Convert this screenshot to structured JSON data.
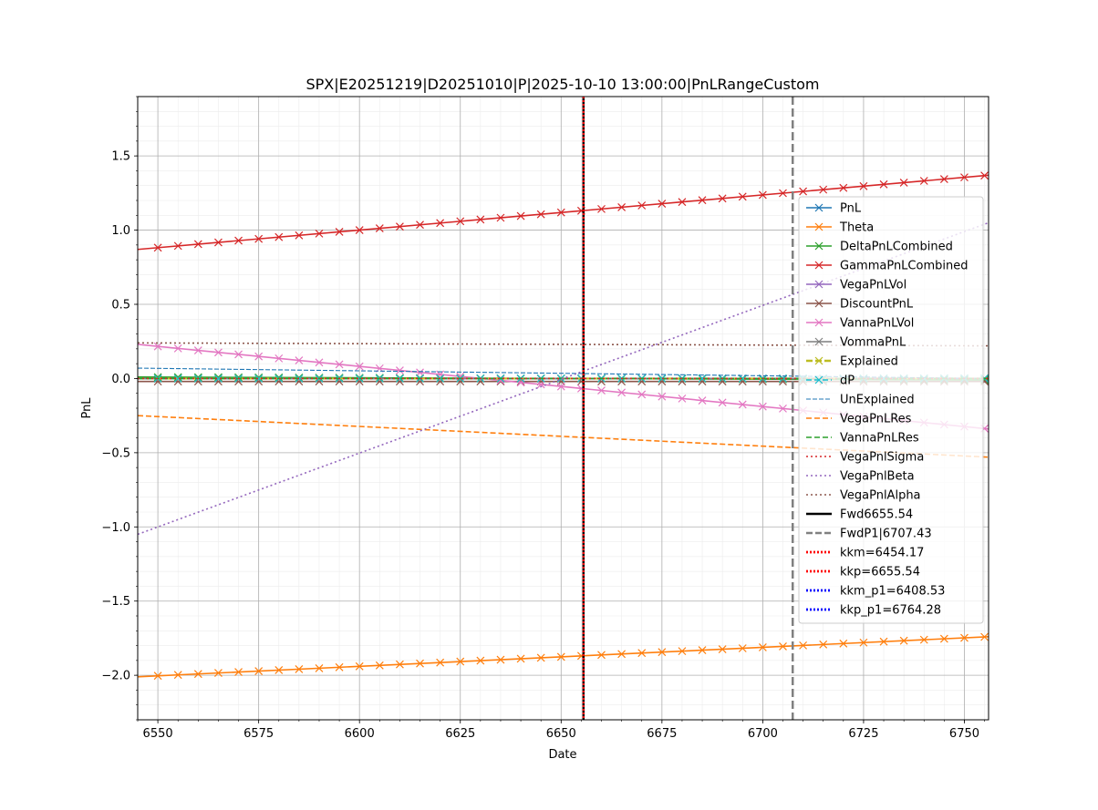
{
  "chart_data": {
    "type": "line",
    "title": "SPX|E20251219|D20251010|P|2025-10-10 13:00:00|PnLRangeCustom",
    "xlabel": "Date",
    "ylabel": "PnL",
    "xlim": [
      6545.0,
      6756.0
    ],
    "ylim": [
      -2.3,
      1.9
    ],
    "xticks": [
      6550,
      6575,
      6600,
      6625,
      6650,
      6675,
      6700,
      6725,
      6750
    ],
    "yticks": [
      -2.0,
      -1.5,
      -1.0,
      -0.5,
      0.0,
      0.5,
      1.0,
      1.5
    ],
    "xtick_labels": [
      "6550",
      "6575",
      "6600",
      "6625",
      "6650",
      "6675",
      "6700",
      "6725",
      "6750"
    ],
    "ytick_labels": [
      "−2.0",
      "−1.5",
      "−1.0",
      "−0.5",
      "0.0",
      "0.5",
      "1.0",
      "1.5"
    ],
    "grid": true,
    "minor_grid": true,
    "legend_position": "right",
    "x_start": 6545,
    "x_end": 6756,
    "marker_step": 5,
    "series": [
      {
        "name": "PnL",
        "color": "#1f77b4",
        "style": "solid",
        "marker": "x",
        "values_start_end": [
          0.0,
          0.0
        ]
      },
      {
        "name": "Theta",
        "color": "#ff7f0e",
        "style": "solid",
        "marker": "x",
        "values_start_end": [
          -2.01,
          -1.74
        ]
      },
      {
        "name": "DeltaPnLCombined",
        "color": "#2ca02c",
        "style": "solid",
        "marker": "x",
        "values_start_end": [
          0.01,
          -0.01
        ]
      },
      {
        "name": "GammaPnLCombined",
        "color": "#d62728",
        "style": "solid",
        "marker": "x",
        "values_start_end": [
          0.87,
          1.37
        ]
      },
      {
        "name": "VegaPnLVol",
        "color": "#9467bd",
        "style": "solid",
        "marker": "x",
        "values_start_end": [
          0.0,
          0.0
        ]
      },
      {
        "name": "DiscountPnL",
        "color": "#8c564b",
        "style": "solid",
        "marker": "x",
        "values_start_end": [
          -0.02,
          -0.02
        ]
      },
      {
        "name": "VannaPnLVol",
        "color": "#e377c2",
        "style": "solid",
        "marker": "x",
        "values_start_end": [
          0.23,
          -0.34
        ]
      },
      {
        "name": "VommaPnL",
        "color": "#7f7f7f",
        "style": "solid",
        "marker": "x",
        "values_start_end": [
          0.0,
          0.0
        ]
      },
      {
        "name": "Explained",
        "color": "#bcbd22",
        "style": "dashed-thick",
        "marker": "x",
        "values_start_end": [
          0.0,
          0.0
        ]
      },
      {
        "name": "dP",
        "color": "#17becf",
        "style": "dashed",
        "marker": "x",
        "values_start_end": [
          0.0,
          0.0
        ]
      },
      {
        "name": "UnExplained",
        "color": "#1f77b4",
        "style": "dashed-thin",
        "marker": "",
        "values_start_end": [
          0.07,
          0.0
        ]
      },
      {
        "name": "VegaPnLRes",
        "color": "#ff7f0e",
        "style": "dashed",
        "marker": "",
        "values_start_end": [
          -0.25,
          -0.53
        ]
      },
      {
        "name": "VannaPnLRes",
        "color": "#2ca02c",
        "style": "dashed",
        "marker": "",
        "values_start_end": [
          0.0,
          0.0
        ]
      },
      {
        "name": "VegaPnlSigma",
        "color": "#d62728",
        "style": "dotted",
        "marker": "",
        "values_start_end": [
          0.0,
          0.0
        ]
      },
      {
        "name": "VegaPnlBeta",
        "color": "#9467bd",
        "style": "dotted",
        "marker": "",
        "values_start_end": [
          -1.05,
          1.05
        ]
      },
      {
        "name": "VegaPnlAlpha",
        "color": "#8c564b",
        "style": "dotted",
        "marker": "",
        "values_start_end": [
          0.24,
          0.22
        ]
      }
    ],
    "vlines": [
      {
        "name": "Fwd6655.54",
        "x": 6655.54,
        "color": "#000000",
        "style": "solid"
      },
      {
        "name": "FwdP1|6707.43",
        "x": 6707.43,
        "color": "#808080",
        "style": "dashed"
      },
      {
        "name": "kkm=6454.17",
        "x": 6454.17,
        "color": "#ff0000",
        "style": "dotted"
      },
      {
        "name": "kkp=6655.54",
        "x": 6655.54,
        "color": "#ff0000",
        "style": "dotted"
      },
      {
        "name": "kkm_p1=6408.53",
        "x": 6408.53,
        "color": "#0000ff",
        "style": "dotted"
      },
      {
        "name": "kkp_p1=6764.28",
        "x": 6764.28,
        "color": "#0000ff",
        "style": "dotted"
      }
    ]
  }
}
